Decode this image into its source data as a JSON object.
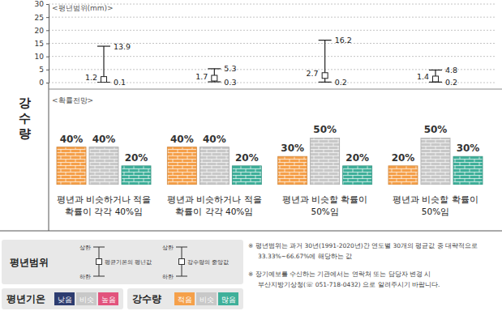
{
  "chart_data": [
    {
      "type": "range",
      "title": "<평년범위(mm)>",
      "values": [
        1.2,
        1.7,
        2.7,
        1.4
      ],
      "lower": [
        0.1,
        0.3,
        0.2,
        0.2
      ],
      "upper": [
        13.9,
        5.3,
        16.2,
        4.8
      ],
      "color": "#222222",
      "ylim": [
        0,
        30
      ],
      "yticks": [
        0,
        5,
        10,
        15,
        20,
        25,
        30
      ],
      "grid": true,
      "data_labels": true
    },
    {
      "type": "bar",
      "title": "<확률전망>",
      "categories": [
        "평년과 비슷하거나 적을\n확률이 각각 40%임",
        "평년과 비슷하거나 적을\n확률이 각각 40%임",
        "평년과 비슷할 확률이\n50%임",
        "평년과 비슷할 확률이\n50%임"
      ],
      "series": [
        {
          "name": "적음",
          "color": "#f5a04a",
          "values": [
            40,
            40,
            30,
            20
          ],
          "value_labels": [
            "40%",
            "40%",
            "30%",
            "20%"
          ]
        },
        {
          "name": "비슷",
          "color": "#c8c8c8",
          "values": [
            40,
            40,
            50,
            50
          ],
          "value_labels": [
            "40%",
            "40%",
            "50%",
            "50%"
          ]
        },
        {
          "name": "많음",
          "color": "#3fb09a",
          "values": [
            20,
            20,
            20,
            30
          ],
          "value_labels": [
            "20%",
            "20%",
            "20%",
            "30%"
          ]
        }
      ],
      "ylim": [
        0,
        50
      ],
      "data_labels": true,
      "tick_labels": false
    }
  ],
  "row_label": "강수량",
  "range_key": {
    "title": "평년범위",
    "items": [
      {
        "upper": "상한",
        "lower": "하한",
        "label": "평균기온의 평년값"
      },
      {
        "upper": "상한",
        "lower": "하한",
        "label": "강수량의 중앙값"
      }
    ]
  },
  "temperature_legend": {
    "title": "평년기온",
    "items": [
      {
        "name": "낮음",
        "color": "#2d3c70"
      },
      {
        "name": "비슷",
        "color": "#c8c8c8"
      },
      {
        "name": "높음",
        "color": "#e2537d"
      }
    ]
  },
  "precipitation_legend_title": "강수량",
  "notes": [
    [
      "※ 평년범위는 과거 30년(1991-2020년)간 연도별 30개의 평균값 중 대략적으로",
      "33.33%~66.67%에 해당하는 값"
    ],
    [
      "※ 장기예보를 수신하는 기관에서는 연락처 또는 담당자 변경 시",
      "부산지방기상청(☏ 051-718-0432) 으로 알려주시기 바랍니다."
    ]
  ]
}
